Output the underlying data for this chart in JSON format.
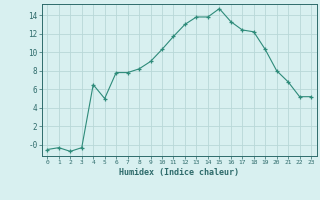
{
  "x": [
    0,
    1,
    2,
    3,
    4,
    5,
    6,
    7,
    8,
    9,
    10,
    11,
    12,
    13,
    14,
    15,
    16,
    17,
    18,
    19,
    20,
    21,
    22,
    23
  ],
  "y": [
    -0.5,
    -0.3,
    -0.7,
    -0.3,
    6.5,
    5.0,
    7.8,
    7.8,
    8.2,
    9.0,
    10.3,
    11.7,
    13.0,
    13.8,
    13.8,
    14.7,
    13.3,
    12.4,
    12.2,
    10.3,
    8.0,
    6.8,
    5.2,
    5.2
  ],
  "xlabel": "Humidex (Indice chaleur)",
  "line_color": "#2e8b7a",
  "marker": "+",
  "bg_color": "#d8f0f0",
  "grid_color": "#b8d8d8",
  "tick_color": "#2e6b6b",
  "label_color": "#2e6b6b",
  "ylim": [
    -1.2,
    15.2
  ],
  "xlim": [
    -0.5,
    23.5
  ],
  "yticks": [
    0,
    2,
    4,
    6,
    8,
    10,
    12,
    14
  ],
  "ytick_labels": [
    "-0",
    "2",
    "4",
    "6",
    "8",
    "10",
    "12",
    "14"
  ],
  "xticks": [
    0,
    1,
    2,
    3,
    4,
    5,
    6,
    7,
    8,
    9,
    10,
    11,
    12,
    13,
    14,
    15,
    16,
    17,
    18,
    19,
    20,
    21,
    22,
    23
  ]
}
